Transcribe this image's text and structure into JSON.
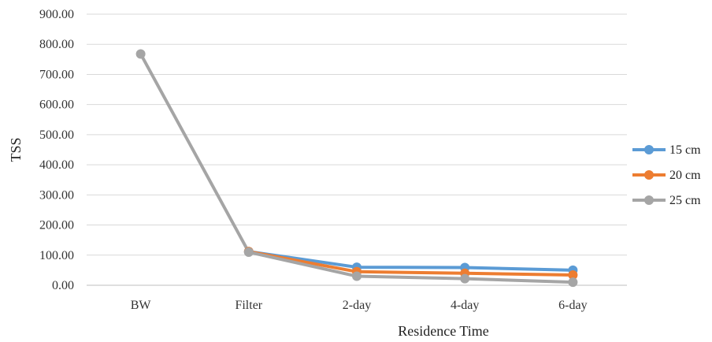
{
  "chart_data": {
    "type": "line",
    "title": "",
    "xlabel": "Residence Time",
    "ylabel": "TSS",
    "categories": [
      "BW",
      "Filter",
      "2-day",
      "4-day",
      "6-day"
    ],
    "ylim": [
      0,
      900
    ],
    "yticks": [
      "0.00",
      "100.00",
      "200.00",
      "300.00",
      "400.00",
      "500.00",
      "600.00",
      "700.00",
      "800.00",
      "900.00"
    ],
    "grid": "horizontal",
    "legend_position": "right",
    "series": [
      {
        "name": "15 cm",
        "color": "#5b9bd5",
        "values": [
          null,
          112,
          60,
          59,
          50
        ]
      },
      {
        "name": "20 cm",
        "color": "#ed7d31",
        "values": [
          null,
          112,
          45,
          40,
          34
        ]
      },
      {
        "name": "25 cm",
        "color": "#a5a5a5",
        "values": [
          768,
          110,
          30,
          22,
          10
        ]
      }
    ]
  }
}
